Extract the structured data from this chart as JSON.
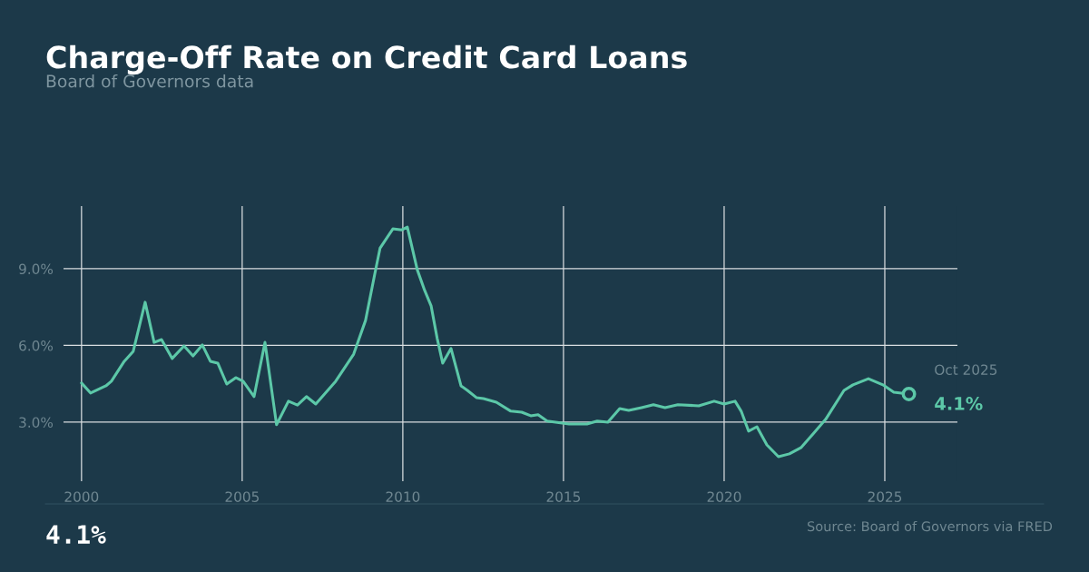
{
  "chart_data": {
    "type": "line",
    "title": "Charge-Off Rate on Credit Card Loans",
    "subtitle": "Board of Governors data",
    "x": [
      2000.0,
      2000.28,
      2000.76,
      2000.93,
      2001.33,
      2001.61,
      2001.98,
      2002.26,
      2002.49,
      2002.82,
      2003.19,
      2003.47,
      2003.76,
      2004.01,
      2004.24,
      2004.52,
      2004.8,
      2005.03,
      2005.37,
      2005.71,
      2006.07,
      2006.44,
      2006.72,
      2007.0,
      2007.29,
      2007.91,
      2008.47,
      2008.84,
      2009.12,
      2009.29,
      2009.69,
      2009.97,
      2010.14,
      2010.45,
      2010.68,
      2010.88,
      2011.07,
      2011.24,
      2011.5,
      2011.81,
      2012.01,
      2012.29,
      2012.51,
      2012.91,
      2013.36,
      2013.7,
      2013.98,
      2014.21,
      2014.49,
      2015.17,
      2015.73,
      2016.05,
      2016.38,
      2016.75,
      2017.03,
      2017.43,
      2017.8,
      2018.16,
      2018.56,
      2019.21,
      2019.69,
      2020.0,
      2020.34,
      2020.53,
      2020.76,
      2021.02,
      2021.33,
      2021.69,
      2022.03,
      2022.4,
      2022.79,
      2023.16,
      2023.73,
      2024.01,
      2024.49,
      2024.94,
      2025.28,
      2025.75
    ],
    "series": [
      {
        "color": "#5cc8a8",
        "values": [
          4.53,
          4.14,
          4.42,
          4.6,
          5.38,
          5.77,
          7.69,
          6.12,
          6.23,
          5.49,
          5.98,
          5.59,
          6.02,
          5.38,
          5.31,
          4.49,
          4.74,
          4.6,
          4.0,
          6.12,
          2.9,
          3.82,
          3.67,
          4.0,
          3.71,
          4.6,
          5.66,
          6.98,
          8.75,
          9.8,
          10.56,
          10.52,
          10.63,
          8.96,
          8.15,
          7.55,
          6.27,
          5.31,
          5.88,
          4.42,
          4.24,
          3.96,
          3.92,
          3.78,
          3.43,
          3.39,
          3.25,
          3.29,
          3.04,
          2.93,
          2.93,
          3.04,
          3.0,
          3.53,
          3.46,
          3.57,
          3.68,
          3.57,
          3.68,
          3.64,
          3.82,
          3.71,
          3.82,
          3.43,
          2.65,
          2.82,
          2.11,
          1.65,
          1.76,
          2.01,
          2.57,
          3.11,
          4.24,
          4.46,
          4.7,
          4.46,
          4.17,
          4.1
        ]
      }
    ],
    "xlim": [
      1999.44,
      2027.26
    ],
    "ylim": [
      0.69,
      11.45
    ],
    "xticks": [
      2000,
      2005,
      2010,
      2015,
      2020,
      2025
    ],
    "yticks": [
      {
        "value": 3,
        "label": "3.0%"
      },
      {
        "value": 6,
        "label": "6.0%"
      },
      {
        "value": 9,
        "label": "9.0%"
      }
    ],
    "grid": true,
    "line_style": "solid",
    "annotations": [
      {
        "text": "Oct 2025",
        "x": 2025.75,
        "y": 4.1
      },
      {
        "text": "4.1%",
        "x": 2025.75,
        "y": 4.1
      },
      "4.1%",
      "Source: Board of Governors via FRED"
    ]
  }
}
